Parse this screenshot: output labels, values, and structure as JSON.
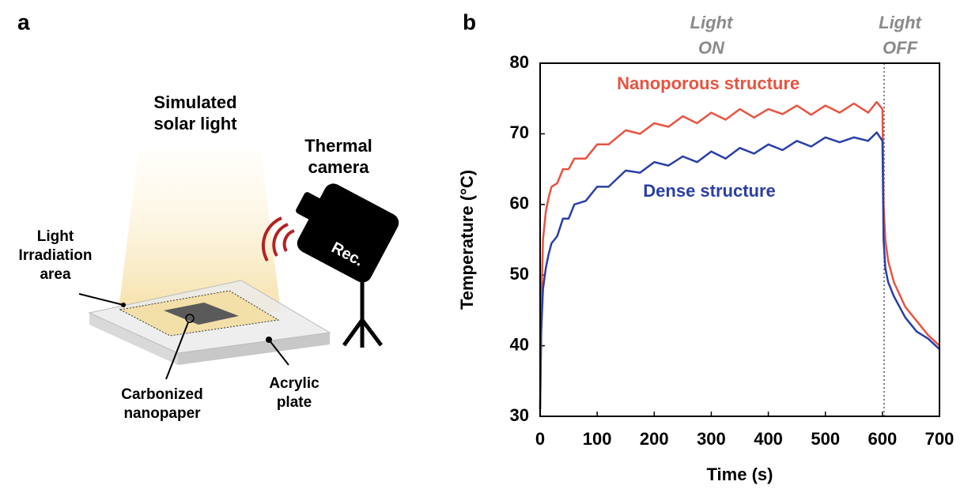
{
  "panel_a": {
    "letter": "a",
    "light_label": [
      "Simulated",
      "solar light"
    ],
    "camera_label": [
      "Thermal",
      "camera"
    ],
    "camera_text": "Rec.",
    "area_label": [
      "Light",
      "Irradiation",
      "area"
    ],
    "paper_label": [
      "Carbonized",
      "nanopaper"
    ],
    "plate_label": [
      "Acrylic",
      "plate"
    ]
  },
  "chart_data": {
    "type": "line",
    "letter": "b",
    "xlabel": "Time (s)",
    "ylabel": "Temperature (°C)",
    "xlim": [
      0,
      700
    ],
    "ylim": [
      30,
      80
    ],
    "xticks": [
      0,
      100,
      200,
      300,
      400,
      500,
      600,
      700
    ],
    "yticks": [
      30,
      40,
      50,
      60,
      70,
      80
    ],
    "grid": false,
    "light_off_time": 603,
    "annotations": [
      {
        "lines": [
          "Light",
          "ON"
        ]
      },
      {
        "lines": [
          "Light",
          "OFF"
        ]
      }
    ],
    "x": [
      0,
      2,
      5,
      10,
      15,
      20,
      30,
      40,
      50,
      60,
      80,
      100,
      120,
      150,
      175,
      200,
      225,
      250,
      275,
      300,
      325,
      350,
      375,
      400,
      425,
      450,
      475,
      500,
      525,
      550,
      575,
      590,
      600,
      602,
      605,
      610,
      620,
      640,
      660,
      680,
      700
    ],
    "series": [
      {
        "name": "Nanoporous structure",
        "color": "#e8533f",
        "values": [
          31,
          45,
          55,
          59,
          61,
          62.5,
          63,
          65,
          65,
          66.5,
          66.5,
          68.5,
          68.5,
          70.5,
          70,
          71.5,
          71,
          72.5,
          71.5,
          73,
          72,
          73.5,
          72.3,
          73.5,
          72.8,
          74,
          72.7,
          74,
          73,
          74.3,
          73,
          74.5,
          73.5,
          60,
          55,
          52,
          49,
          45.5,
          43.5,
          41.5,
          40
        ]
      },
      {
        "name": "Dense structure",
        "color": "#2a3ea6",
        "values": [
          31,
          42,
          48,
          51,
          53,
          54.5,
          55.5,
          58,
          58,
          60,
          60.5,
          62.5,
          62.5,
          64.8,
          64.5,
          66,
          65.5,
          66.8,
          66,
          67.5,
          66.5,
          68,
          67.2,
          68.5,
          67.7,
          69,
          68.2,
          69.5,
          68.8,
          69.5,
          69,
          70.2,
          69,
          55,
          51,
          49,
          47,
          44,
          42,
          41,
          39.5
        ]
      }
    ]
  }
}
